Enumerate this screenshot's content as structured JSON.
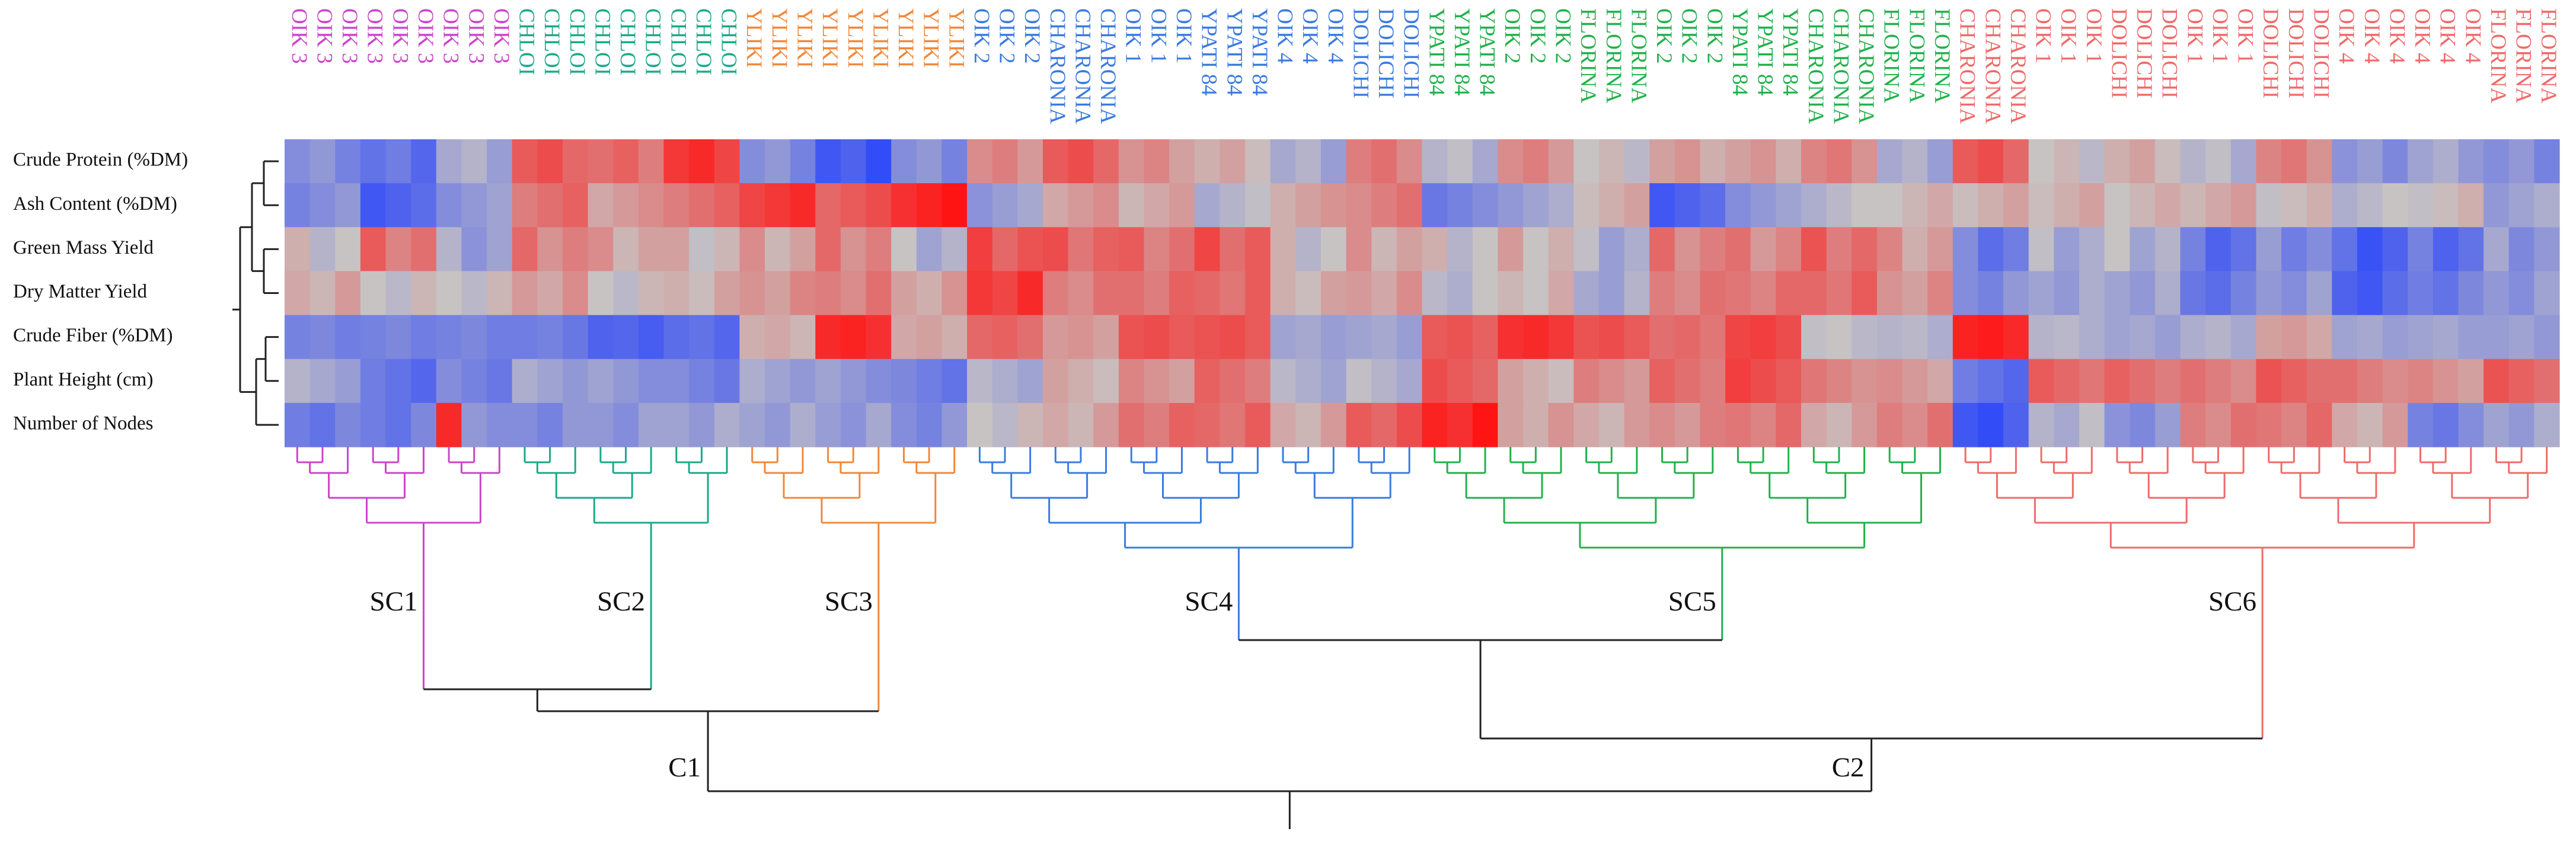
{
  "chart_data": {
    "type": "heatmap",
    "rows": [
      "Crude Protein (%DM)",
      "Ash Content (%DM)",
      "Green Mass Yield",
      "Dry Matter Yield",
      "Crude Fiber (%DM)",
      "Plant Height (cm)",
      "Number of Nodes"
    ],
    "colors": {
      "low": "#1e3cff",
      "mid": "#c8c3c3",
      "high": "#ff1414"
    },
    "zlim": [
      -2.5,
      2.5
    ],
    "clusters": [
      {
        "label": "C1",
        "subclusters": [
          {
            "label": "SC1",
            "color": "#cc44cc",
            "columns": [
              "OIK 3",
              "OIK 3",
              "OIK 3",
              "OIK 3",
              "OIK 3",
              "OIK 3",
              "OIK 3",
              "OIK 3",
              "OIK 3"
            ]
          },
          {
            "label": "SC2",
            "color": "#1aaa8a",
            "columns": [
              "CHLOI",
              "CHLOI",
              "CHLOI",
              "CHLOI",
              "CHLOI",
              "CHLOI",
              "CHLOI",
              "CHLOI",
              "CHLOI"
            ]
          },
          {
            "label": "SC3",
            "color": "#f0883a",
            "columns": [
              "YLIKI",
              "YLIKI",
              "YLIKI",
              "YLIKI",
              "YLIKI",
              "YLIKI",
              "YLIKI",
              "YLIKI",
              "YLIKI"
            ]
          }
        ]
      },
      {
        "label": "C2",
        "subclusters": [
          {
            "label": "SC4",
            "color": "#3a7be0",
            "columns": [
              "OIK 2",
              "OIK 2",
              "OIK 2",
              "CHARONIA",
              "CHARONIA",
              "CHARONIA",
              "OIK 1",
              "OIK 1",
              "OIK 1",
              "YPATI 84",
              "YPATI 84",
              "YPATI 84",
              "OIK 4",
              "OIK 4",
              "OIK 4",
              "DOLICHI",
              "DOLICHI",
              "DOLICHI"
            ]
          },
          {
            "label": "SC5",
            "color": "#22b14c",
            "columns": [
              "YPATI 84",
              "YPATI 84",
              "YPATI 84",
              "OIK 2",
              "OIK 2",
              "OIK 2",
              "FLORINA",
              "FLORINA",
              "FLORINA",
              "OIK 2",
              "OIK 2",
              "OIK 2",
              "YPATI 84",
              "YPATI 84",
              "YPATI 84",
              "CHARONIA",
              "CHARONIA",
              "CHARONIA",
              "FLORINA",
              "FLORINA",
              "FLORINA"
            ]
          },
          {
            "label": "SC6",
            "color": "#f06a6a",
            "columns": [
              "CHARONIA",
              "CHARONIA",
              "CHARONIA",
              "OIK 1",
              "OIK 1",
              "OIK 1",
              "DOLICHI",
              "DOLICHI",
              "DOLICHI",
              "OIK 1",
              "OIK 1",
              "OIK 1",
              "DOLICHI",
              "DOLICHI",
              "DOLICHI",
              "OIK 4",
              "OIK 4",
              "OIK 4",
              "OIK 4",
              "OIK 4",
              "OIK 4",
              "FLORINA",
              "FLORINA",
              "FLORINA"
            ]
          }
        ]
      }
    ],
    "values": [
      [
        -1,
        -0.8,
        -1.2,
        -1.5,
        -1.3,
        -1.7,
        -0.5,
        -0.3,
        -0.7,
        1.5,
        1.7,
        1.3,
        1.2,
        1.4,
        1.0,
        2,
        2.2,
        1.8,
        -1,
        -0.8,
        -1.2,
        -2,
        -1.8,
        -2.2,
        -1,
        -0.8,
        -1.2,
        0.8,
        1.0,
        0.6,
        1.5,
        1.7,
        1.3,
        0.7,
        0.9,
        0.5,
        0.3,
        0.5,
        0.1,
        -0.5,
        -0.3,
        -0.7,
        1,
        1.2,
        0.8,
        -0.3,
        -0.1,
        -0.5,
        0.8,
        1.0,
        0.6,
        0,
        0.2,
        -0.2,
        0.5,
        0.7,
        0.3,
        0.5,
        0.7,
        0.3,
        0.9,
        1.1,
        0.7,
        -0.5,
        -0.3,
        -0.7,
        1.5,
        1.7,
        1.3,
        0,
        0.2,
        -0.2,
        0.3,
        0.5,
        0.1,
        -0.3,
        -0.1,
        -0.5,
        0.9,
        1.1,
        0.7,
        -0.9,
        -0.7,
        -1.1,
        -0.6,
        -0.4,
        -0.8,
        -1,
        -0.8,
        -1.2
      ],
      [
        -1.2,
        -1,
        -0.8,
        -2,
        -1.8,
        -1.6,
        -1,
        -0.8,
        -0.6,
        1,
        1.2,
        1.4,
        0.4,
        0.6,
        0.8,
        1,
        1.2,
        1.4,
        1.8,
        2,
        2.2,
        1.3,
        1.5,
        1.7,
        2.1,
        2.3,
        2.5,
        -0.9,
        -0.7,
        -0.5,
        0.4,
        0.6,
        0.8,
        0.2,
        0.4,
        0.6,
        -0.5,
        -0.3,
        -0.1,
        0.3,
        0.5,
        0.7,
        0.8,
        1,
        1.2,
        -1.4,
        -1.2,
        -1,
        -0.8,
        -0.6,
        -0.4,
        0.1,
        0.3,
        0.5,
        -2,
        -1.8,
        -1.6,
        -1,
        -0.8,
        -0.6,
        -0.4,
        -0.2,
        0,
        0,
        0.2,
        0.4,
        0.1,
        0.3,
        0.5,
        0.1,
        0.3,
        0.5,
        0,
        0.2,
        0.4,
        0.2,
        0.4,
        0.6,
        -0.1,
        0.1,
        0.3,
        -0.4,
        -0.2,
        0,
        -0.1,
        0.1,
        0.3,
        -0.8,
        -0.6,
        -0.4
      ],
      [
        0.3,
        -0.3,
        0,
        1.5,
        0.9,
        1.2,
        -0.3,
        -0.9,
        -0.6,
        1.3,
        0.7,
        1,
        0.8,
        0.2,
        0.5,
        0.5,
        -0.1,
        0.2,
        0.8,
        0.2,
        0.5,
        1.3,
        0.7,
        1,
        0,
        -0.6,
        -0.3,
        1.9,
        1.3,
        1.6,
        1.7,
        1.1,
        1.4,
        1.5,
        0.9,
        1.2,
        1.8,
        1.2,
        1.5,
        0.3,
        -0.3,
        0,
        0.8,
        0.2,
        0.5,
        0.3,
        -0.3,
        0,
        0.6,
        0,
        0.3,
        -0.1,
        -0.7,
        -0.4,
        1.3,
        0.7,
        1,
        1.2,
        0.6,
        0.9,
        1.6,
        1,
        1.3,
        0.9,
        0.3,
        0.6,
        -1,
        -1.6,
        -1.3,
        -0.1,
        -0.7,
        -0.4,
        0,
        -0.6,
        -0.3,
        -1.2,
        -1.8,
        -1.5,
        -0.7,
        -1.3,
        -1,
        -1.5,
        -2.1,
        -1.8,
        -1.2,
        -1.8,
        -1.5,
        -0.5,
        -1.1,
        -0.8
      ],
      [
        0.4,
        0.2,
        0.6,
        0,
        -0.2,
        0.2,
        0,
        -0.2,
        0.2,
        0.6,
        0.4,
        0.8,
        0,
        -0.2,
        0.2,
        0.3,
        0.1,
        0.5,
        0.7,
        0.5,
        0.9,
        1,
        0.8,
        1.2,
        0.5,
        0.3,
        0.7,
        2,
        1.8,
        2.2,
        1,
        0.8,
        1.2,
        1.2,
        1,
        1.4,
        1.3,
        1.1,
        1.5,
        0.3,
        0.1,
        0.5,
        0.6,
        0.4,
        0.8,
        -0.2,
        -0.4,
        0,
        0.2,
        0,
        0.4,
        -0.5,
        -0.7,
        -0.3,
        1,
        0.8,
        1.2,
        1.1,
        0.9,
        1.3,
        1.3,
        1.1,
        1.5,
        0.7,
        0.5,
        0.9,
        -1,
        -1.2,
        -0.8,
        -0.6,
        -0.8,
        -0.4,
        -0.6,
        -0.8,
        -0.4,
        -1.4,
        -1.6,
        -1.2,
        -0.8,
        -1,
        -0.6,
        -1.8,
        -2,
        -1.6,
        -1.3,
        -1.5,
        -1.1,
        -0.8,
        -1,
        -0.6
      ],
      [
        -1.2,
        -1.1,
        -1.3,
        -1.2,
        -1.1,
        -1.3,
        -1.2,
        -1.1,
        -1.3,
        -1.3,
        -1.2,
        -1.4,
        -1.8,
        -1.7,
        -1.9,
        -1.6,
        -1.5,
        -1.7,
        0.3,
        0.4,
        0.2,
        2.2,
        2.3,
        2.1,
        0.4,
        0.5,
        0.3,
        1.3,
        1.4,
        1.2,
        0.6,
        0.7,
        0.5,
        1.6,
        1.7,
        1.5,
        1.6,
        1.7,
        1.5,
        -0.6,
        -0.5,
        -0.7,
        -0.6,
        -0.5,
        -0.7,
        1.5,
        1.6,
        1.4,
        2.1,
        2.2,
        2,
        1.6,
        1.7,
        1.5,
        1.2,
        1.3,
        1.1,
        1.8,
        1.9,
        1.7,
        -0.1,
        0,
        -0.2,
        -0.3,
        -0.2,
        -0.4,
        2.3,
        2.4,
        2.2,
        -0.3,
        -0.2,
        -0.4,
        -0.6,
        -0.5,
        -0.7,
        -0.4,
        -0.3,
        -0.5,
        0.5,
        0.6,
        0.4,
        -0.6,
        -0.5,
        -0.7,
        -0.6,
        -0.5,
        -0.7,
        -0.7,
        -0.6,
        -0.8
      ],
      [
        -0.3,
        -0.5,
        -0.7,
        -1.3,
        -1.5,
        -1.7,
        -1,
        -1.2,
        -1.4,
        -0.4,
        -0.6,
        -0.8,
        -0.6,
        -0.8,
        -1,
        -1,
        -1.2,
        -1.4,
        -0.4,
        -0.6,
        -0.8,
        -0.6,
        -0.8,
        -1,
        -1.1,
        -1.3,
        -1.5,
        -0.2,
        -0.4,
        -0.6,
        0.5,
        0.3,
        0.1,
        0.9,
        0.7,
        0.5,
        1.4,
        1.2,
        1,
        -0.2,
        -0.4,
        -0.6,
        -0.1,
        -0.3,
        -0.5,
        1.7,
        1.5,
        1.3,
        0.5,
        0.3,
        0.1,
        1,
        0.8,
        0.6,
        1.4,
        1.2,
        1,
        1.9,
        1.7,
        1.5,
        1.1,
        0.9,
        0.7,
        0.8,
        0.6,
        0.4,
        -1.3,
        -1.5,
        -1.7,
        1.5,
        1.3,
        1.1,
        1.4,
        1.2,
        1,
        1.2,
        1,
        0.8,
        1.6,
        1.4,
        1.2,
        1.2,
        1,
        0.8,
        0.9,
        0.7,
        0.5,
        1.6,
        1.4,
        1.2
      ],
      [
        -1.3,
        -1.5,
        -1.1,
        -1.3,
        -1.5,
        -1.1,
        2.2,
        -0.8,
        -1,
        -1,
        -1.2,
        -0.8,
        -0.8,
        -1,
        -0.6,
        -0.6,
        -0.8,
        -0.4,
        -0.6,
        -0.8,
        -0.4,
        -0.7,
        -0.9,
        -0.5,
        -1,
        -1.2,
        -0.8,
        0,
        -0.2,
        0.2,
        0.4,
        0.2,
        0.6,
        1.2,
        1,
        1.4,
        1.3,
        1.1,
        1.5,
        0.4,
        0.2,
        0.6,
        1.5,
        1.3,
        1.7,
        2.3,
        2.1,
        2.5,
        0.5,
        0.3,
        0.7,
        0.4,
        0.2,
        0.6,
        0.8,
        0.6,
        1,
        1.1,
        0.9,
        1.3,
        0.4,
        0.2,
        0.6,
        1,
        0.8,
        1.2,
        -2,
        -2.2,
        -1.8,
        -0.3,
        -0.5,
        -0.1,
        -0.9,
        -1.1,
        -0.7,
        1,
        0.8,
        1.2,
        1.1,
        0.9,
        1.3,
        0.4,
        0.2,
        0.6,
        -1.2,
        -1.4,
        -1,
        -0.6,
        -0.8,
        -0.4
      ]
    ]
  }
}
